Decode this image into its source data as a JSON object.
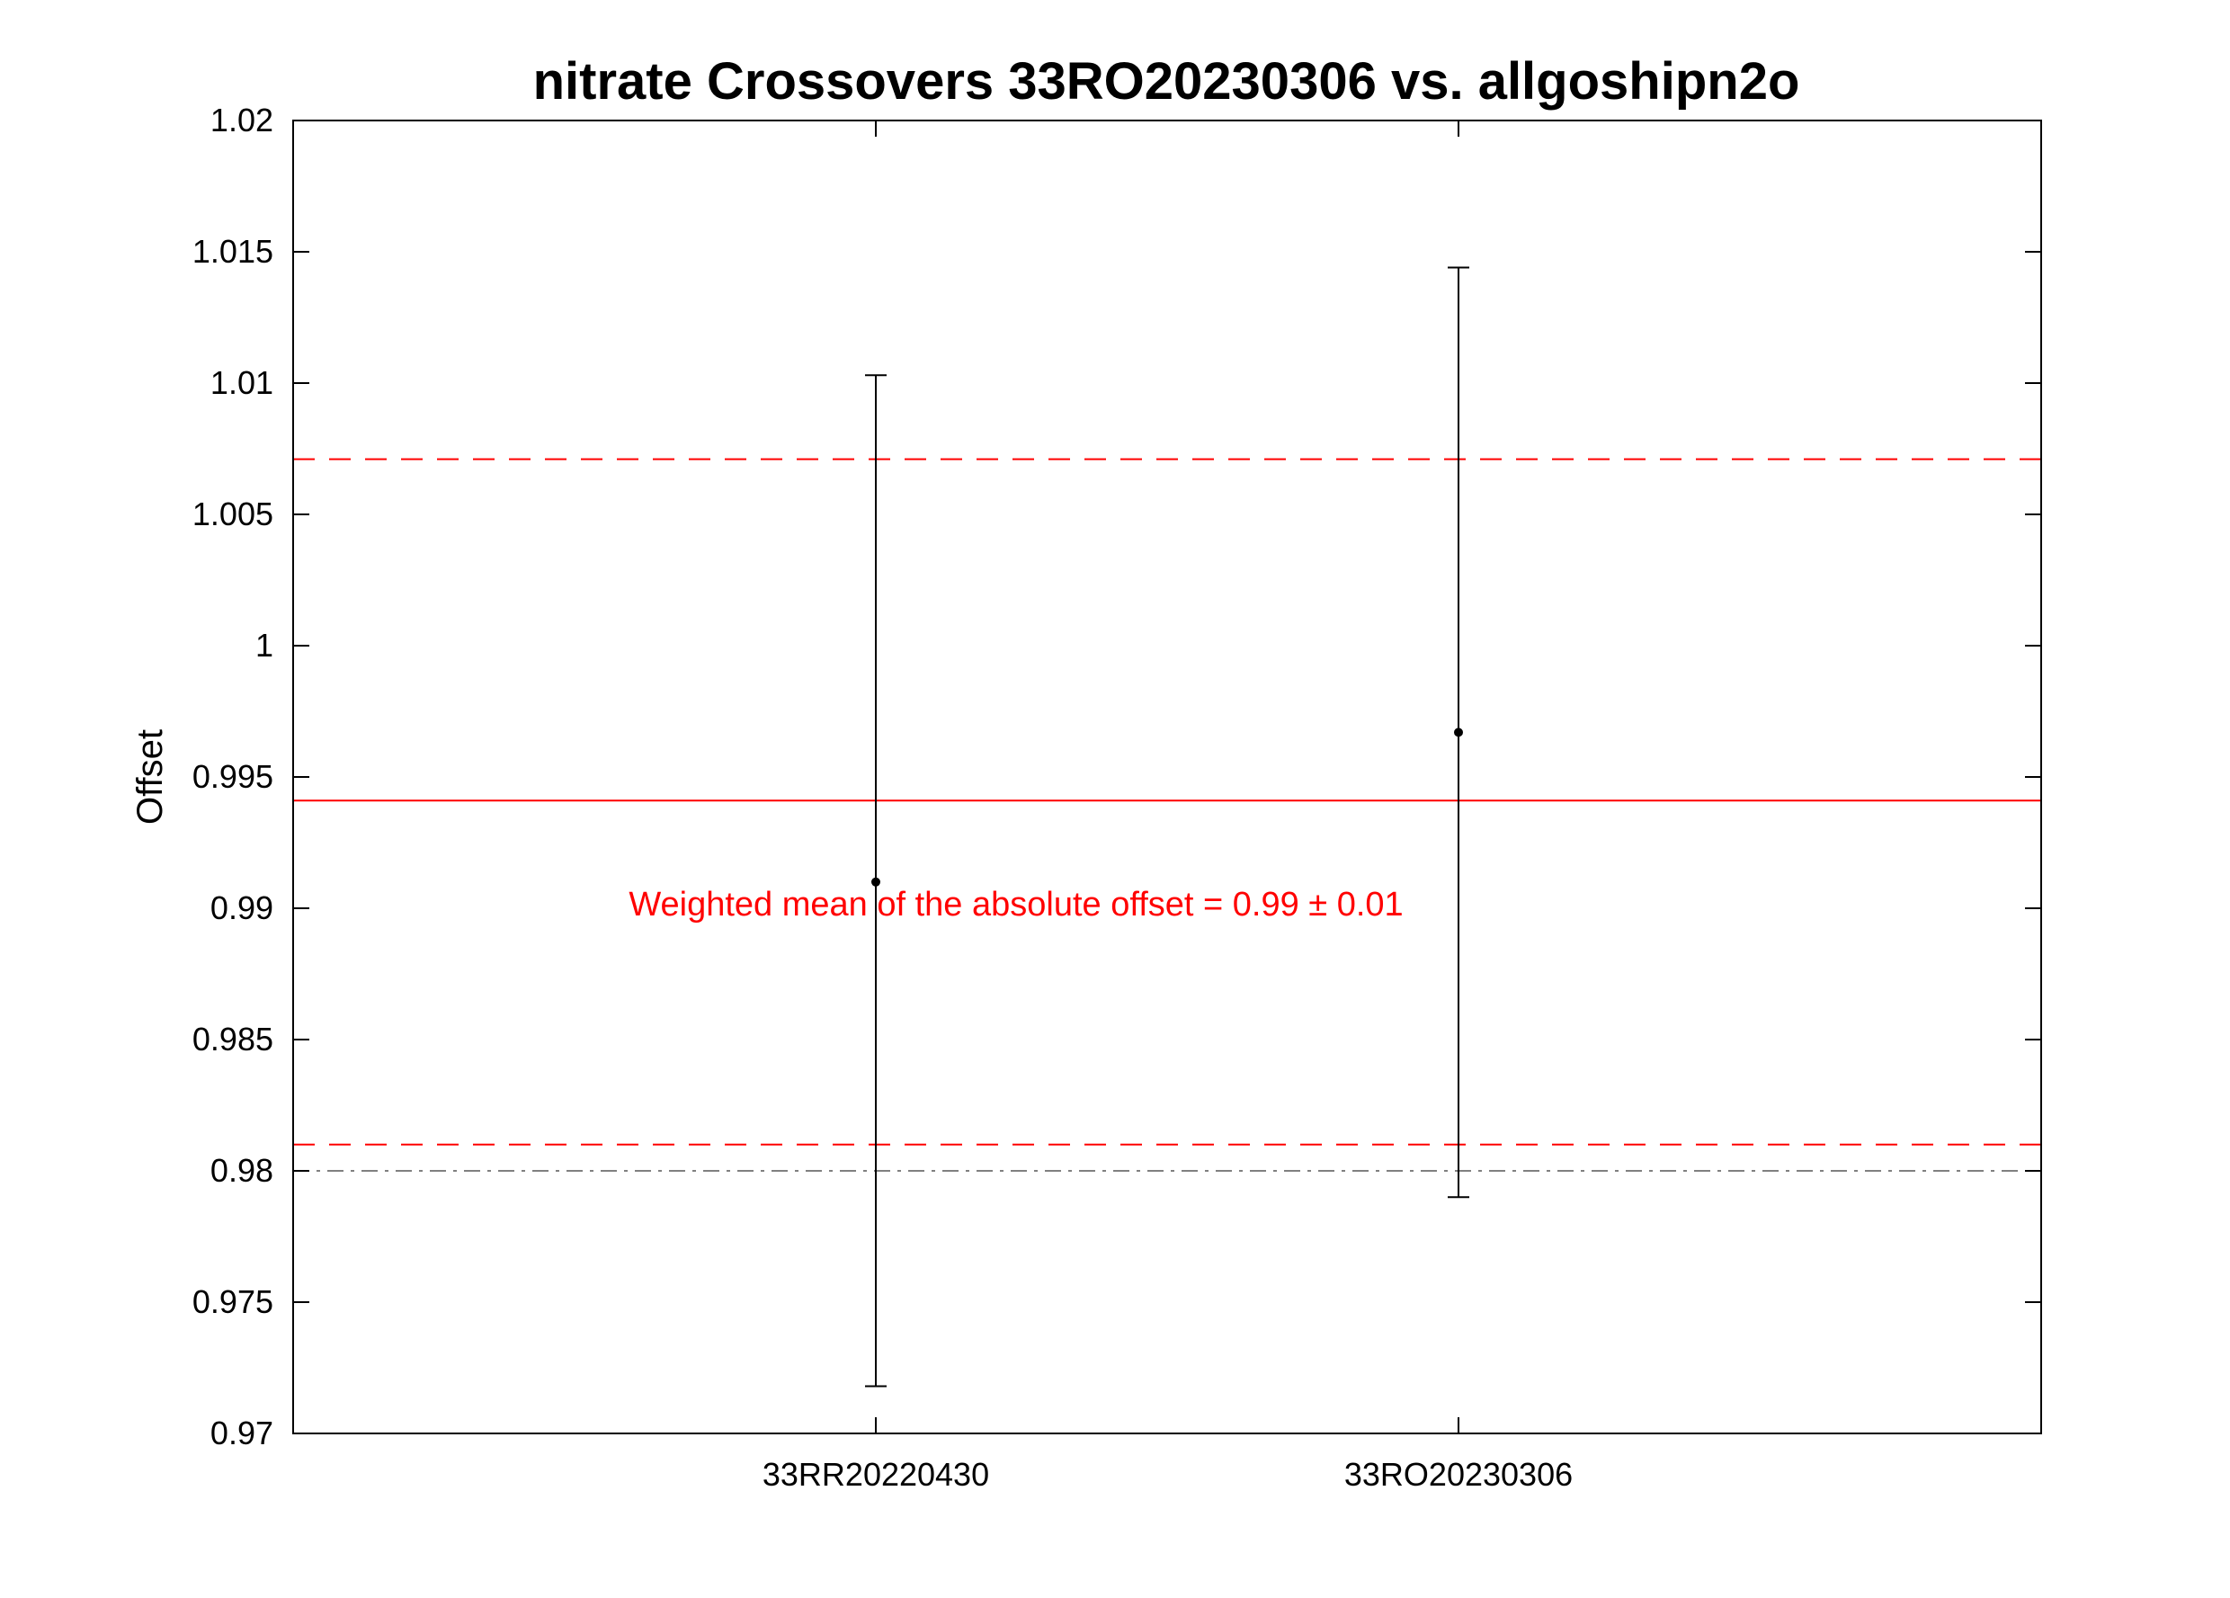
{
  "chart_data": {
    "type": "scatter",
    "title": "nitrate Crossovers 33RO20230306 vs. allgoshipn2o",
    "xlabel": "",
    "ylabel": "Offset",
    "ylim": [
      0.97,
      1.02
    ],
    "yticks": [
      0.97,
      0.975,
      0.98,
      0.985,
      0.99,
      0.995,
      1,
      1.005,
      1.01,
      1.015,
      1.02
    ],
    "ytick_labels": [
      "0.97",
      "0.975",
      "0.98",
      "0.985",
      "0.99",
      "0.995",
      "1",
      "1.005",
      "1.01",
      "1.015",
      "1.02"
    ],
    "categories": [
      "33RR20220430",
      "33RO20230306"
    ],
    "points": [
      {
        "category": "33RR20220430",
        "value": 0.991,
        "err_low": 0.9718,
        "err_high": 1.0103
      },
      {
        "category": "33RO20230306",
        "value": 0.9967,
        "err_low": 0.979,
        "err_high": 1.0144
      }
    ],
    "reference_lines": [
      {
        "role": "weighted-mean",
        "value": 0.9941,
        "style": "solid",
        "color": "#ff0000"
      },
      {
        "role": "upper-bound",
        "value": 1.0071,
        "style": "dashed",
        "color": "#ff0000"
      },
      {
        "role": "lower-bound",
        "value": 0.981,
        "style": "dashed",
        "color": "#ff0000"
      },
      {
        "role": "threshold",
        "value": 0.98,
        "style": "dash-dot",
        "color": "#808080"
      }
    ],
    "annotation": {
      "text": "Weighted mean of the absolute offset = 0.99 ± 0.01",
      "color": "#ff0000"
    },
    "grid": false,
    "legend": "none"
  }
}
